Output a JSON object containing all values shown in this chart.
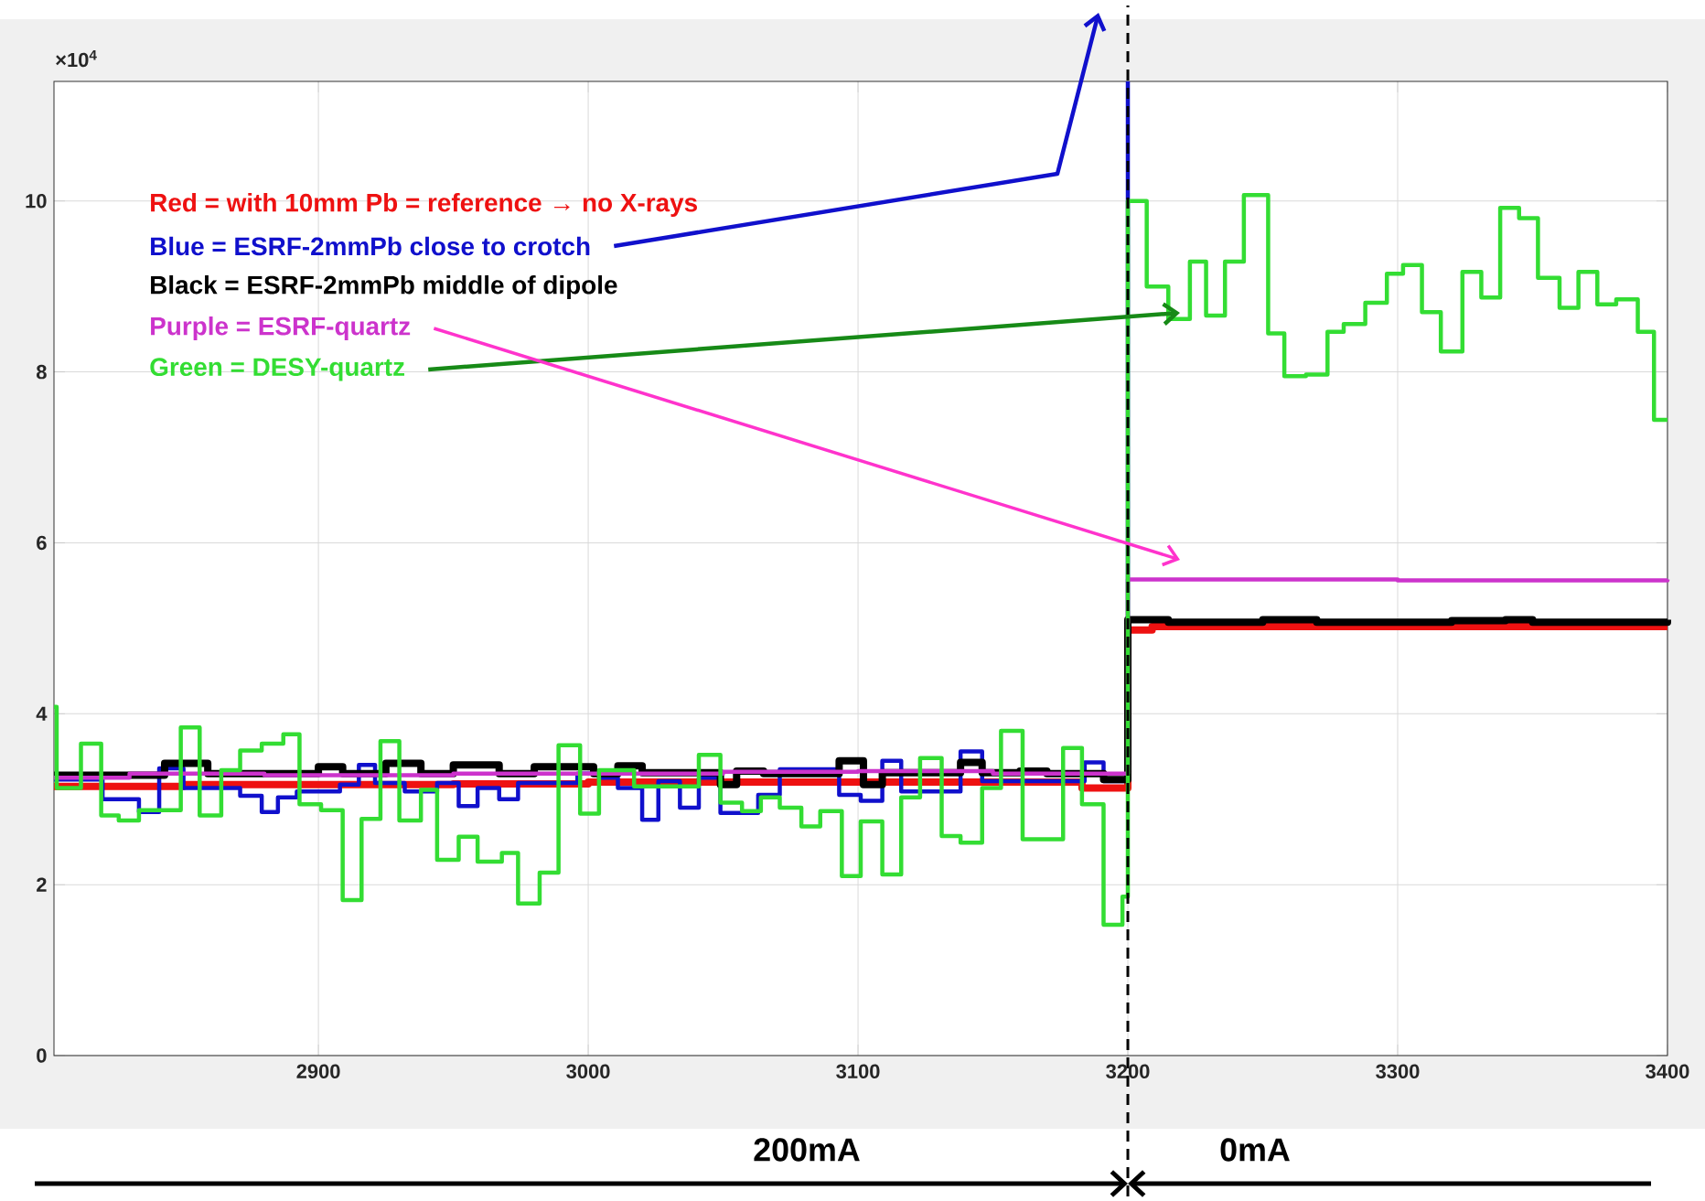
{
  "chart_data": {
    "type": "step",
    "xlim": [
      2802,
      3400
    ],
    "xticks": [
      2900,
      3000,
      3100,
      3200,
      3300,
      3400
    ],
    "ylim": [
      0,
      11.4
    ],
    "yticks": [
      0,
      2,
      4,
      6,
      8,
      10
    ],
    "grid": true,
    "series": [
      {
        "name": "Red = with 10mm Pb = reference → no X-rays",
        "color": "#ee1111",
        "x": [
          2802,
          2850,
          2950,
          3000,
          3100,
          3183,
          3200,
          3209,
          3300,
          3400
        ],
        "values": [
          3.15,
          3.17,
          3.18,
          3.2,
          3.2,
          3.13,
          4.98,
          5.02,
          5.02,
          5.02
        ]
      },
      {
        "name": "Blue = ESRF-2mmPb  close to crotch",
        "color": "#1010cc",
        "x": [
          2802,
          2820,
          2833.5,
          2841,
          2850,
          2871,
          2879,
          2885,
          2892,
          2908,
          2915,
          2921,
          2932,
          2944,
          2952,
          2959,
          2967,
          2974,
          2996,
          3004,
          3011,
          3020,
          3026,
          3034,
          3041,
          3049,
          3063,
          3071,
          3093,
          3101,
          3109,
          3116,
          3138,
          3146,
          3184,
          3191,
          3200
        ],
        "values": [
          3.23,
          3.0,
          2.85,
          3.36,
          3.13,
          3.04,
          2.85,
          3.02,
          3.09,
          3.17,
          3.4,
          3.19,
          3.09,
          3.19,
          2.92,
          3.13,
          3.0,
          3.19,
          3.3,
          3.25,
          3.13,
          2.76,
          3.21,
          2.9,
          3.25,
          2.84,
          3.05,
          3.35,
          3.05,
          2.98,
          3.45,
          3.09,
          3.56,
          3.21,
          3.43,
          3.21,
          11.4
        ]
      },
      {
        "name": "Black = ESRF-2mmPb middle of dipole",
        "color": "#000000",
        "x": [
          2802,
          2843,
          2859,
          2900,
          2909,
          2925,
          2938,
          2950,
          2967,
          2980,
          3002,
          3011,
          3020,
          3049,
          3055,
          3065,
          3093,
          3102,
          3109,
          3138,
          3146,
          3160,
          3170,
          3191,
          3200,
          3215,
          3250,
          3270,
          3320,
          3340,
          3350,
          3400
        ],
        "values": [
          3.28,
          3.42,
          3.3,
          3.38,
          3.3,
          3.42,
          3.3,
          3.4,
          3.3,
          3.38,
          3.3,
          3.39,
          3.31,
          3.17,
          3.33,
          3.3,
          3.45,
          3.17,
          3.31,
          3.43,
          3.31,
          3.33,
          3.3,
          3.23,
          5.1,
          5.07,
          5.1,
          5.07,
          5.09,
          5.1,
          5.07,
          5.1
        ]
      },
      {
        "name": "Purple = ESRF-quartz",
        "color": "#cc33cc",
        "x": [
          2802,
          2830,
          2880,
          2950,
          3050,
          3100,
          3150,
          3200,
          3300,
          3400
        ],
        "values": [
          3.25,
          3.3,
          3.28,
          3.3,
          3.32,
          3.33,
          3.3,
          5.57,
          5.56,
          5.57
        ]
      },
      {
        "name": "Green = DESY-quartz",
        "color": "#33dd33",
        "x": [
          2802,
          2803,
          2812,
          2819.5,
          2826,
          2833.5,
          2849,
          2856,
          2864,
          2871,
          2879,
          2887,
          2893,
          2901,
          2909,
          2916,
          2923,
          2930,
          2938,
          2944,
          2952,
          2959,
          2968,
          2974,
          2982,
          2989,
          2997,
          3004,
          3017,
          3041,
          3049,
          3057,
          3064,
          3071,
          3079,
          3086,
          3094,
          3101,
          3109,
          3116,
          3123,
          3131,
          3138,
          3146,
          3153,
          3161,
          3176,
          3183,
          3191,
          3198,
          3200,
          3207,
          3215,
          3223,
          3229,
          3236,
          3243,
          3252,
          3258,
          3266,
          3274,
          3280,
          3288,
          3296,
          3302,
          3309,
          3316,
          3324,
          3331,
          3338,
          3345,
          3352,
          3360,
          3367,
          3374,
          3381,
          3389,
          3395,
          3400
        ],
        "values": [
          4.08,
          3.13,
          3.65,
          2.81,
          2.75,
          2.87,
          3.84,
          2.81,
          3.34,
          3.57,
          3.65,
          3.76,
          2.94,
          2.87,
          1.82,
          2.77,
          3.68,
          2.75,
          3.11,
          2.29,
          2.56,
          2.27,
          2.37,
          1.78,
          2.14,
          3.63,
          2.83,
          3.34,
          3.15,
          3.52,
          2.96,
          2.86,
          3.02,
          2.9,
          2.68,
          2.86,
          2.1,
          2.74,
          2.12,
          3.02,
          3.48,
          2.57,
          2.49,
          3.13,
          3.8,
          2.53,
          3.6,
          2.94,
          1.53,
          1.86,
          10.0,
          9.0,
          8.62,
          9.29,
          8.66,
          9.29,
          10.07,
          8.45,
          7.95,
          7.97,
          8.47,
          8.56,
          8.81,
          9.15,
          9.25,
          8.7,
          8.24,
          9.17,
          8.87,
          9.92,
          9.8,
          9.1,
          8.75,
          9.17,
          8.79,
          8.85,
          8.47,
          7.44,
          7.44
        ]
      }
    ],
    "ref_lines": [
      {
        "axis": "x",
        "value": 3200,
        "color": "#000000",
        "line_style": "dashed"
      }
    ],
    "annotations": [
      "×10$^{4}$",
      "200mA",
      "0mA"
    ]
  }
}
